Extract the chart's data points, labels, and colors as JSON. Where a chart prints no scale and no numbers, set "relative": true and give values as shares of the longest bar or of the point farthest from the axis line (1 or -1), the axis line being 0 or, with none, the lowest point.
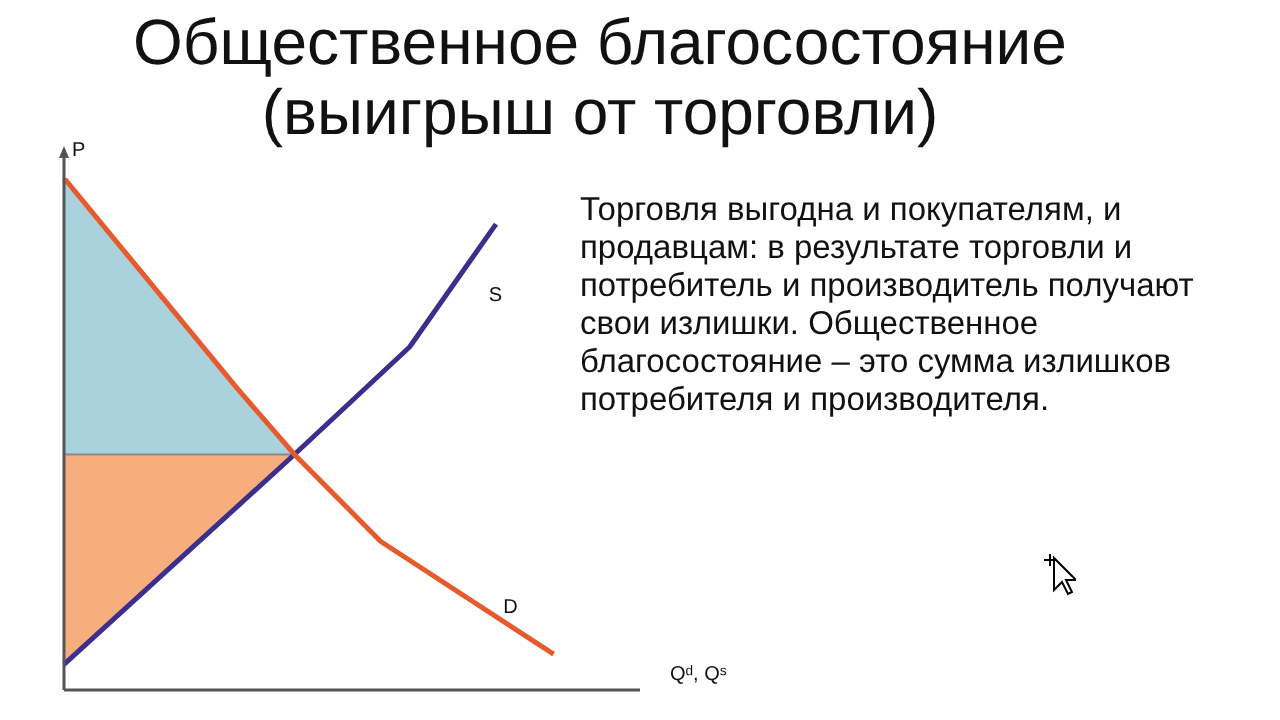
{
  "chart_data": {
    "type": "line",
    "title": "Общественное благосостояние (выигрыш от торговли)",
    "xlabel": "Qᵈ, Qˢ",
    "ylabel": "P",
    "relative": true,
    "marker": "none",
    "annotations": [
      "Торговля выгодна и покупателям, и продавцам: в результате торговли и потребитель и производитель получают свои излишки. Общественное благосостояние – это сумма излишков потребителя и производителя."
    ],
    "categories": [
      null,
      null,
      null,
      null,
      null,
      null,
      null,
      null,
      null,
      null,
      null,
      null,
      null,
      null,
      null,
      null,
      null,
      null,
      null,
      null,
      null
    ],
    "bands": [
      {
        "axis": "y",
        "from": 0.46,
        "to": 1,
        "color": "#a9d2dc"
      },
      {
        "axis": "y",
        "from": 0.05,
        "to": 0.46,
        "color": "#f8ad7c"
      }
    ],
    "ref_lines": [
      {
        "axis": "y",
        "value": 0.46,
        "color": "#8a8a8a"
      }
    ],
    "series": [
      {
        "name": "D",
        "color": "#e65a2e",
        "values": [
          1,
          null,
          null,
          null,
          null,
          null,
          0.59,
          null,
          0.46,
          null,
          null,
          0.29,
          null,
          null,
          null,
          null,
          null,
          0.07,
          null,
          null,
          null
        ]
      },
      {
        "name": "S",
        "color": "#3a2f8c",
        "values": [
          0.05,
          null,
          null,
          null,
          null,
          null,
          null,
          null,
          0.46,
          null,
          null,
          null,
          0.67,
          null,
          null,
          0.91,
          null,
          null,
          null,
          null,
          null
        ]
      }
    ]
  }
}
